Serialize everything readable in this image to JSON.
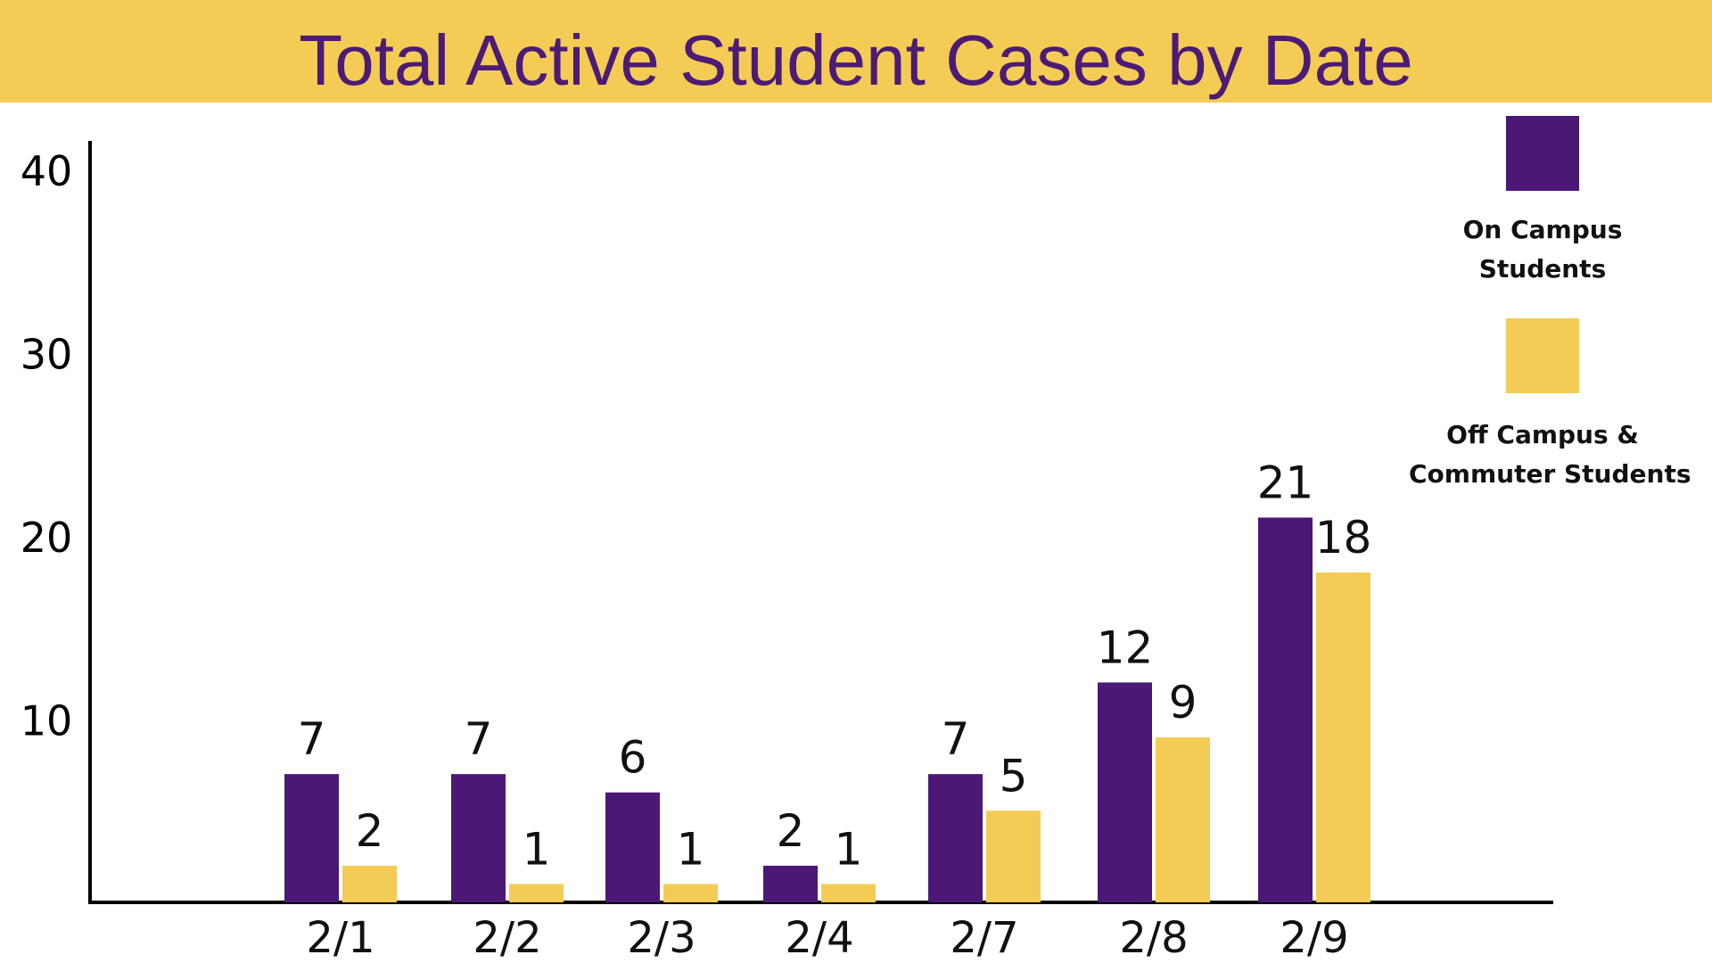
{
  "title": "Total Active Student Cases by Date",
  "colors": {
    "band": "#F4CC55",
    "on_campus": "#4B1876",
    "off_campus": "#F4CC55",
    "title_text": "#4B1B76"
  },
  "legend": [
    {
      "line1": "On Campus",
      "line2": "Students"
    },
    {
      "line1": "Off Campus &",
      "line2": "Commuter Students"
    }
  ],
  "chart_data": {
    "type": "bar",
    "title": "Total Active Student Cases by Date",
    "categories": [
      "2/1",
      "2/2",
      "2/3",
      "2/4",
      "2/7",
      "2/8",
      "2/9"
    ],
    "series": [
      {
        "name": "On Campus Students",
        "values": [
          7,
          7,
          6,
          2,
          7,
          12,
          21
        ]
      },
      {
        "name": "Off Campus & Commuter Students",
        "values": [
          2,
          1,
          1,
          1,
          5,
          9,
          18
        ]
      }
    ],
    "y_ticks": [
      10,
      20,
      30,
      40
    ],
    "ylim": [
      0,
      40
    ],
    "xlabel": "",
    "ylabel": "",
    "legend_position": "right",
    "grid": false,
    "data_labels": true
  }
}
